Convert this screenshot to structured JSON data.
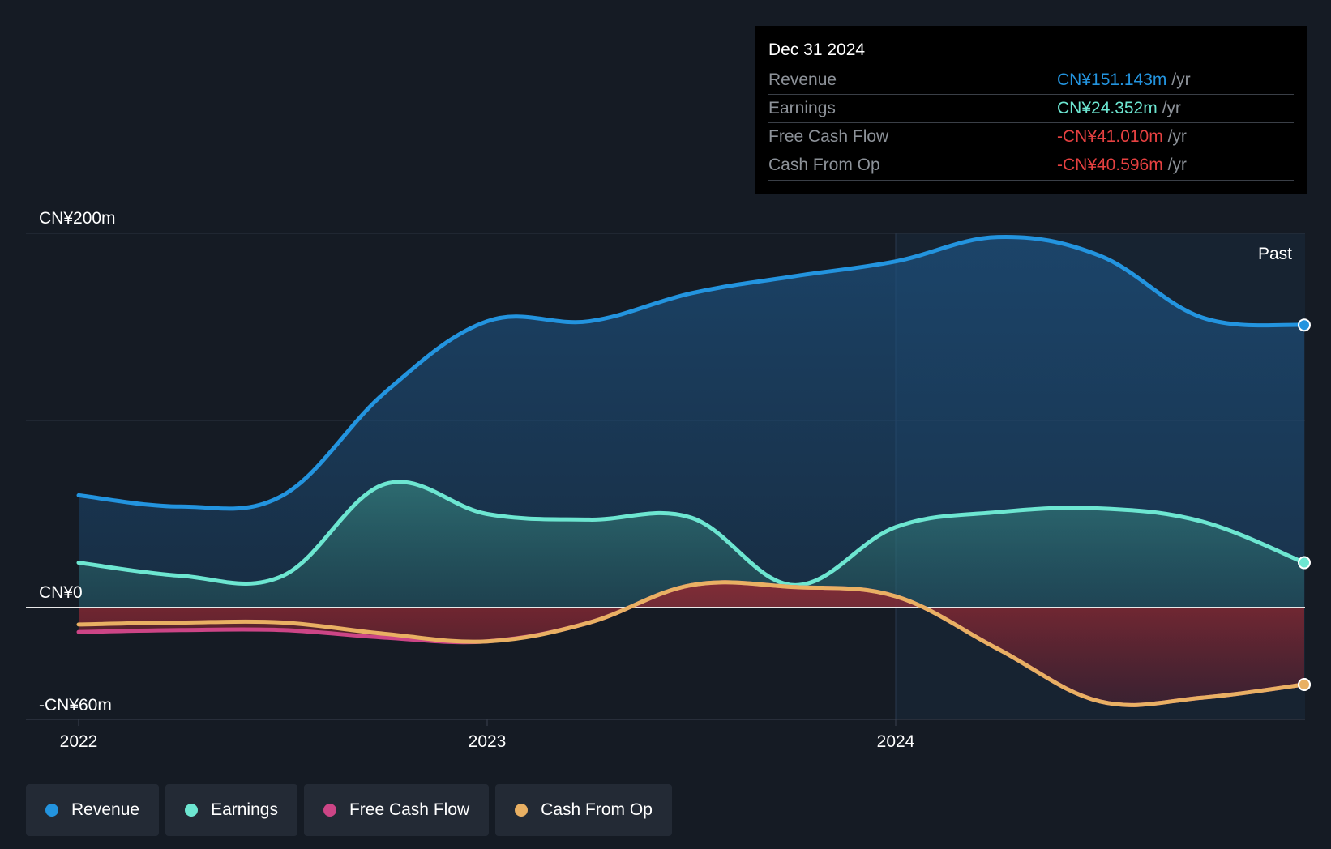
{
  "tooltip": {
    "date": "Dec 31 2024",
    "rows": [
      {
        "label": "Revenue",
        "value": "CN¥151.143m",
        "unit": "/yr",
        "color": "#2394df"
      },
      {
        "label": "Earnings",
        "value": "CN¥24.352m",
        "unit": "/yr",
        "color": "#6de6d1"
      },
      {
        "label": "Free Cash Flow",
        "value": "-CN¥41.010m",
        "unit": "/yr",
        "color": "#e64141"
      },
      {
        "label": "Cash From Op",
        "value": "-CN¥40.596m",
        "unit": "/yr",
        "color": "#e64141"
      }
    ]
  },
  "legend": [
    {
      "label": "Revenue",
      "color": "#2394df"
    },
    {
      "label": "Earnings",
      "color": "#6de6d1"
    },
    {
      "label": "Free Cash Flow",
      "color": "#cc4586"
    },
    {
      "label": "Cash From Op",
      "color": "#e9b063"
    }
  ],
  "chart_data": {
    "type": "area",
    "ylim": [
      -60,
      200
    ],
    "y_ticks": [
      {
        "value": 200,
        "label": "CN¥200m"
      },
      {
        "value": 0,
        "label": "CN¥0"
      },
      {
        "value": -60,
        "label": "-CN¥60m"
      }
    ],
    "x_ticks": [
      {
        "value": 2022.0,
        "label": "2022"
      },
      {
        "value": 2023.0,
        "label": "2023"
      },
      {
        "value": 2024.0,
        "label": "2024"
      }
    ],
    "xlim": [
      2021.87,
      2025.0
    ],
    "past_label": "Past",
    "past_start": 2024.0,
    "series": [
      {
        "name": "Revenue",
        "color": "#2394df",
        "x": [
          2022.0,
          2022.25,
          2022.5,
          2022.75,
          2023.0,
          2023.25,
          2023.5,
          2023.75,
          2024.0,
          2024.25,
          2024.5,
          2024.75,
          2025.0
        ],
        "values": [
          60,
          54,
          60,
          115,
          153,
          153,
          168,
          177,
          185,
          198,
          188,
          155,
          151
        ]
      },
      {
        "name": "Earnings",
        "color": "#6de6d1",
        "x": [
          2022.0,
          2022.25,
          2022.5,
          2022.75,
          2023.0,
          2023.25,
          2023.5,
          2023.75,
          2024.0,
          2024.25,
          2024.5,
          2024.75,
          2025.0
        ],
        "values": [
          24,
          17,
          17,
          66,
          50,
          47,
          48,
          12,
          43,
          51,
          53,
          46,
          24
        ]
      },
      {
        "name": "Free Cash Flow",
        "color": "#cc4586",
        "x": [
          2022.0,
          2022.25,
          2022.5,
          2022.75,
          2023.0,
          2023.25,
          2023.5,
          2023.75,
          2024.0,
          2024.25,
          2024.5,
          2024.75,
          2025.0
        ],
        "values": [
          -13,
          -12,
          -12,
          -16,
          -18,
          -8,
          12,
          11,
          6,
          -22,
          -50,
          -48,
          -41
        ]
      },
      {
        "name": "Cash From Op",
        "color": "#e9b063",
        "x": [
          2022.0,
          2022.25,
          2022.5,
          2022.75,
          2023.0,
          2023.25,
          2023.5,
          2023.75,
          2024.0,
          2024.25,
          2024.5,
          2024.75,
          2025.0
        ],
        "values": [
          -9,
          -8,
          -8,
          -14,
          -18,
          -8,
          12,
          11,
          6,
          -22,
          -50,
          -48,
          -41
        ]
      }
    ]
  }
}
